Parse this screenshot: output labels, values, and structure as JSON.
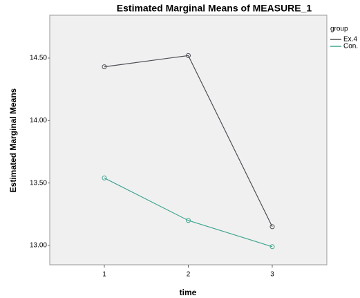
{
  "chart_data": {
    "type": "line",
    "title": "Estimated Marginal Means of MEASURE_1",
    "x_label": "time",
    "y_label": "Estimated Marginal Means",
    "legend_title": "group",
    "categories": [
      "1",
      "2",
      "3"
    ],
    "series": [
      {
        "name": "Ex.4",
        "color": "#4d4d55",
        "values": [
          14.43,
          14.52,
          13.15
        ]
      },
      {
        "name": "Con.",
        "color": "#3fa58f",
        "values": [
          13.54,
          13.2,
          12.99
        ]
      }
    ],
    "ylim": [
      12.845,
      14.843
    ],
    "yticks": [
      {
        "value": 13.0,
        "label": "13.00"
      },
      {
        "value": 13.5,
        "label": "13.50"
      },
      {
        "value": 14.0,
        "label": "14.00"
      },
      {
        "value": 14.5,
        "label": "14.50"
      }
    ],
    "grid": false,
    "legend": "right",
    "background": "#f0f0f0"
  }
}
